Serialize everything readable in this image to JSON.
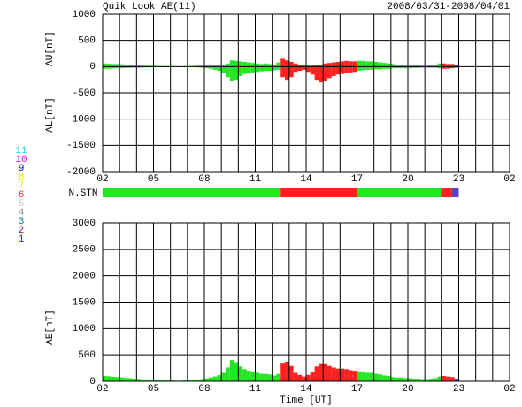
{
  "title": "Quik Look AE(11)",
  "date_range": "2008/03/31-2008/04/01",
  "nstn_label": "N.STN",
  "nstn": [
    {
      "start": 2,
      "end": 12.5,
      "color": "#22e822"
    },
    {
      "start": 12.5,
      "end": 17,
      "color": "#ff2020"
    },
    {
      "start": 17,
      "end": 22,
      "color": "#22e822"
    },
    {
      "start": 22,
      "end": 22.6,
      "color": "#ff2020"
    },
    {
      "start": 22.6,
      "end": 23,
      "color": "#6040c0"
    }
  ],
  "station_legend": [
    {
      "label": "11",
      "color": "#00e0e0"
    },
    {
      "label": "10",
      "color": "#e000e0"
    },
    {
      "label": "9",
      "color": "#000090"
    },
    {
      "label": "8",
      "color": "#f0e000"
    },
    {
      "label": "7",
      "color": "#d0f060"
    },
    {
      "label": "6",
      "color": "#ff2020"
    },
    {
      "label": "5",
      "color": "#c0c0c0"
    },
    {
      "label": "4",
      "color": "#909090"
    },
    {
      "label": "3",
      "color": "#008080"
    },
    {
      "label": "2",
      "color": "#8000a0"
    },
    {
      "label": "1",
      "color": "#2020ff"
    }
  ],
  "chart_data": [
    {
      "type": "bar",
      "ylabels": [
        "AU[nT]",
        "AL[nT]"
      ],
      "x": [
        2,
        2.25,
        2.5,
        2.75,
        3,
        3.25,
        3.5,
        3.75,
        4,
        4.25,
        4.5,
        4.75,
        5,
        5.25,
        5.5,
        5.75,
        6,
        6.25,
        6.5,
        6.75,
        7,
        7.25,
        7.5,
        7.75,
        8,
        8.25,
        8.5,
        8.75,
        9,
        9.25,
        9.5,
        9.75,
        10,
        10.25,
        10.5,
        10.75,
        11,
        11.25,
        11.5,
        11.75,
        12,
        12.25,
        12.5,
        12.75,
        13,
        13.25,
        13.5,
        13.75,
        14,
        14.25,
        14.5,
        14.75,
        15,
        15.25,
        15.5,
        15.75,
        16,
        16.25,
        16.5,
        16.75,
        17,
        17.25,
        17.5,
        17.75,
        18,
        18.25,
        18.5,
        18.75,
        19,
        19.25,
        19.5,
        19.75,
        20,
        20.25,
        20.5,
        20.75,
        21,
        21.25,
        21.5,
        21.75,
        22,
        22.25,
        22.5,
        22.75
      ],
      "series": [
        {
          "name": "AU",
          "values": [
            60,
            55,
            50,
            50,
            45,
            40,
            35,
            30,
            25,
            20,
            20,
            15,
            15,
            10,
            10,
            10,
            10,
            5,
            5,
            10,
            10,
            15,
            20,
            20,
            25,
            30,
            30,
            35,
            40,
            60,
            120,
            110,
            100,
            90,
            80,
            70,
            60,
            50,
            60,
            50,
            40,
            80,
            150,
            120,
            90,
            60,
            40,
            30,
            20,
            20,
            30,
            40,
            60,
            70,
            80,
            90,
            100,
            110,
            100,
            100,
            110,
            110,
            100,
            100,
            90,
            80,
            70,
            60,
            50,
            40,
            40,
            30,
            30,
            25,
            25,
            20,
            20,
            30,
            40,
            60,
            60,
            50,
            50,
            30
          ]
        },
        {
          "name": "AL",
          "values": [
            -40,
            -40,
            -35,
            -30,
            -30,
            -25,
            -25,
            -20,
            -20,
            -15,
            -15,
            -15,
            -10,
            -10,
            -10,
            -10,
            -10,
            -5,
            -5,
            -10,
            -10,
            -10,
            -15,
            -20,
            -30,
            -40,
            -60,
            -80,
            -120,
            -200,
            -280,
            -250,
            -180,
            -140,
            -120,
            -110,
            -100,
            -90,
            -80,
            -80,
            -70,
            -60,
            -200,
            -250,
            -200,
            -100,
            -80,
            -60,
            -100,
            -150,
            -250,
            -300,
            -280,
            -220,
            -180,
            -150,
            -140,
            -120,
            -110,
            -100,
            -80,
            -70,
            -60,
            -60,
            -50,
            -50,
            -40,
            -40,
            -30,
            -30,
            -30,
            -30,
            -30,
            -25,
            -25,
            -20,
            -20,
            -20,
            -20,
            -30,
            -40,
            -40,
            -30,
            -20
          ]
        }
      ],
      "xlim": [
        2,
        26
      ],
      "xticks": [
        {
          "value": 2,
          "label": "02"
        },
        {
          "value": 5,
          "label": "05"
        },
        {
          "value": 8,
          "label": "08"
        },
        11,
        14,
        17,
        20,
        23,
        {
          "value": 26,
          "label": "02"
        }
      ],
      "xgrid": [
        2,
        3,
        4,
        5,
        6,
        7,
        8,
        9,
        10,
        11,
        12,
        13,
        14,
        15,
        16,
        17,
        18,
        19,
        20,
        21,
        22,
        23,
        24,
        25,
        26
      ],
      "ylim": [
        -2000,
        1000
      ],
      "yticks": [
        1000,
        500,
        0,
        -500,
        -1000,
        -1500,
        -2000
      ]
    },
    {
      "type": "bar",
      "ylabels": [
        "AE[nT]"
      ],
      "xlabel": "Time [UT]",
      "x": [
        2,
        2.25,
        2.5,
        2.75,
        3,
        3.25,
        3.5,
        3.75,
        4,
        4.25,
        4.5,
        4.75,
        5,
        5.25,
        5.5,
        5.75,
        6,
        6.25,
        6.5,
        6.75,
        7,
        7.25,
        7.5,
        7.75,
        8,
        8.25,
        8.5,
        8.75,
        9,
        9.25,
        9.5,
        9.75,
        10,
        10.25,
        10.5,
        10.75,
        11,
        11.25,
        11.5,
        11.75,
        12,
        12.25,
        12.5,
        12.75,
        13,
        13.25,
        13.5,
        13.75,
        14,
        14.25,
        14.5,
        14.75,
        15,
        15.25,
        15.5,
        15.75,
        16,
        16.25,
        16.5,
        16.75,
        17,
        17.25,
        17.5,
        17.75,
        18,
        18.25,
        18.5,
        18.75,
        19,
        19.25,
        19.5,
        19.75,
        20,
        20.25,
        20.5,
        20.75,
        21,
        21.25,
        21.5,
        21.75,
        22,
        22.25,
        22.5,
        22.75
      ],
      "series": [
        {
          "name": "AE",
          "values": [
            100,
            95,
            85,
            80,
            75,
            65,
            60,
            50,
            45,
            35,
            35,
            30,
            25,
            20,
            20,
            20,
            20,
            10,
            10,
            20,
            20,
            25,
            35,
            40,
            55,
            70,
            90,
            115,
            160,
            260,
            400,
            360,
            280,
            230,
            200,
            180,
            160,
            140,
            140,
            130,
            110,
            140,
            350,
            370,
            290,
            160,
            120,
            90,
            120,
            170,
            280,
            340,
            340,
            290,
            260,
            240,
            240,
            230,
            210,
            200,
            190,
            180,
            160,
            160,
            140,
            130,
            110,
            100,
            80,
            70,
            70,
            60,
            60,
            50,
            50,
            40,
            40,
            50,
            60,
            90,
            100,
            90,
            80,
            50
          ]
        }
      ],
      "xlim": [
        2,
        26
      ],
      "xticks": [
        {
          "value": 2,
          "label": "02"
        },
        {
          "value": 5,
          "label": "05"
        },
        {
          "value": 8,
          "label": "08"
        },
        11,
        14,
        17,
        20,
        23,
        {
          "value": 26,
          "label": "02"
        }
      ],
      "xgrid": [
        2,
        3,
        4,
        5,
        6,
        7,
        8,
        9,
        10,
        11,
        12,
        13,
        14,
        15,
        16,
        17,
        18,
        19,
        20,
        21,
        22,
        23,
        24,
        25,
        26
      ],
      "ylim": [
        0,
        3000
      ],
      "yticks": [
        3000,
        2500,
        2000,
        1500,
        1000,
        500,
        0
      ]
    }
  ]
}
